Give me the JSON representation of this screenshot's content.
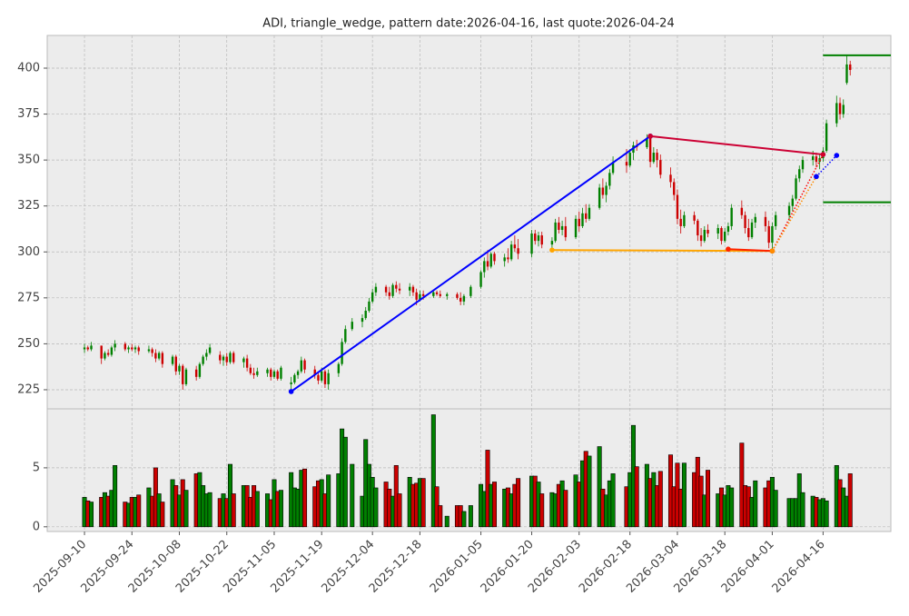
{
  "chart_data": {
    "type": "candlestick",
    "title": "ADI, triangle_wedge, pattern date:2026-04-16, last quote:2026-04-24",
    "up_color": "#008000",
    "down_color": "#cc0000",
    "grid": true,
    "xlim": [
      "2025-08-30",
      "2026-05-06"
    ],
    "xticks": [
      "2025-09-10",
      "2025-09-24",
      "2025-10-08",
      "2025-10-22",
      "2025-11-05",
      "2025-11-19",
      "2025-12-04",
      "2025-12-18",
      "2026-01-05",
      "2026-01-20",
      "2026-02-03",
      "2026-02-18",
      "2026-03-04",
      "2026-03-18",
      "2026-04-01",
      "2026-04-16"
    ],
    "ylim": [
      214.6,
      417.8
    ],
    "yticks": [
      225,
      250,
      275,
      300,
      325,
      350,
      375,
      400
    ],
    "y2lim": [
      -0.4,
      10
    ],
    "y2ticks": [
      0,
      5
    ],
    "x": [
      "2025-09-10",
      "2025-09-11",
      "2025-09-12",
      "2025-09-15",
      "2025-09-16",
      "2025-09-17",
      "2025-09-18",
      "2025-09-19",
      "2025-09-22",
      "2025-09-23",
      "2025-09-24",
      "2025-09-25",
      "2025-09-26",
      "2025-09-29",
      "2025-09-30",
      "2025-10-01",
      "2025-10-02",
      "2025-10-03",
      "2025-10-06",
      "2025-10-07",
      "2025-10-08",
      "2025-10-09",
      "2025-10-10",
      "2025-10-13",
      "2025-10-14",
      "2025-10-15",
      "2025-10-16",
      "2025-10-17",
      "2025-10-20",
      "2025-10-21",
      "2025-10-22",
      "2025-10-23",
      "2025-10-24",
      "2025-10-27",
      "2025-10-28",
      "2025-10-29",
      "2025-10-30",
      "2025-10-31",
      "2025-11-03",
      "2025-11-04",
      "2025-11-05",
      "2025-11-06",
      "2025-11-07",
      "2025-11-10",
      "2025-11-11",
      "2025-11-12",
      "2025-11-13",
      "2025-11-14",
      "2025-11-17",
      "2025-11-18",
      "2025-11-19",
      "2025-11-20",
      "2025-11-21",
      "2025-11-24",
      "2025-11-25",
      "2025-11-26",
      "2025-11-28",
      "2025-12-01",
      "2025-12-02",
      "2025-12-03",
      "2025-12-04",
      "2025-12-05",
      "2025-12-08",
      "2025-12-09",
      "2025-12-10",
      "2025-12-11",
      "2025-12-12",
      "2025-12-15",
      "2025-12-16",
      "2025-12-17",
      "2025-12-18",
      "2025-12-19",
      "2025-12-22",
      "2025-12-23",
      "2025-12-24",
      "2025-12-26",
      "2025-12-29",
      "2025-12-30",
      "2025-12-31",
      "2026-01-02",
      "2026-01-05",
      "2026-01-06",
      "2026-01-07",
      "2026-01-08",
      "2026-01-09",
      "2026-01-12",
      "2026-01-13",
      "2026-01-14",
      "2026-01-15",
      "2026-01-16",
      "2026-01-20",
      "2026-01-21",
      "2026-01-22",
      "2026-01-23",
      "2026-01-26",
      "2026-01-27",
      "2026-01-28",
      "2026-01-29",
      "2026-01-30",
      "2026-02-02",
      "2026-02-03",
      "2026-02-04",
      "2026-02-05",
      "2026-02-06",
      "2026-02-09",
      "2026-02-10",
      "2026-02-11",
      "2026-02-12",
      "2026-02-13",
      "2026-02-17",
      "2026-02-18",
      "2026-02-19",
      "2026-02-20",
      "2026-02-23",
      "2026-02-24",
      "2026-02-25",
      "2026-02-26",
      "2026-02-27",
      "2026-03-02",
      "2026-03-03",
      "2026-03-04",
      "2026-03-05",
      "2026-03-06",
      "2026-03-09",
      "2026-03-10",
      "2026-03-11",
      "2026-03-12",
      "2026-03-13",
      "2026-03-16",
      "2026-03-17",
      "2026-03-18",
      "2026-03-19",
      "2026-03-20",
      "2026-03-23",
      "2026-03-24",
      "2026-03-25",
      "2026-03-26",
      "2026-03-27",
      "2026-03-30",
      "2026-03-31",
      "2026-04-01",
      "2026-04-02",
      "2026-04-06",
      "2026-04-07",
      "2026-04-08",
      "2026-04-09",
      "2026-04-10",
      "2026-04-13",
      "2026-04-14",
      "2026-04-15",
      "2026-04-16",
      "2026-04-17",
      "2026-04-20",
      "2026-04-21",
      "2026-04-22",
      "2026-04-23",
      "2026-04-24"
    ],
    "ohlc": [
      [
        247,
        250,
        245,
        248
      ],
      [
        248,
        249,
        246,
        247
      ],
      [
        247,
        251,
        246,
        249
      ],
      [
        249,
        249,
        239,
        242
      ],
      [
        242,
        246,
        241,
        245
      ],
      [
        245,
        247,
        243,
        244
      ],
      [
        244,
        249,
        243,
        248
      ],
      [
        248,
        252,
        246,
        250
      ],
      [
        250,
        251,
        246,
        247
      ],
      [
        247,
        249,
        245,
        248
      ],
      [
        248,
        250,
        246,
        247
      ],
      [
        247,
        249,
        245,
        248
      ],
      [
        248,
        249,
        244,
        246
      ],
      [
        246,
        249,
        245,
        247
      ],
      [
        247,
        248,
        243,
        245
      ],
      [
        245,
        247,
        240,
        242
      ],
      [
        242,
        246,
        241,
        245
      ],
      [
        245,
        246,
        237,
        239
      ],
      [
        239,
        244,
        238,
        243
      ],
      [
        243,
        244,
        233,
        235
      ],
      [
        235,
        239,
        233,
        238
      ],
      [
        238,
        239,
        225,
        228
      ],
      [
        228,
        237,
        227,
        236
      ],
      [
        236,
        238,
        230,
        232
      ],
      [
        232,
        240,
        231,
        239
      ],
      [
        239,
        244,
        238,
        243
      ],
      [
        243,
        247,
        241,
        245
      ],
      [
        245,
        250,
        244,
        248
      ],
      [
        244,
        246,
        239,
        241
      ],
      [
        241,
        244,
        238,
        243
      ],
      [
        243,
        245,
        238,
        240
      ],
      [
        240,
        246,
        239,
        245
      ],
      [
        245,
        246,
        239,
        240
      ],
      [
        240,
        243,
        237,
        242
      ],
      [
        242,
        244,
        235,
        237
      ],
      [
        237,
        239,
        233,
        234
      ],
      [
        234,
        237,
        231,
        233
      ],
      [
        233,
        237,
        232,
        235
      ],
      [
        234,
        237,
        232,
        236
      ],
      [
        236,
        237,
        230,
        232
      ],
      [
        232,
        236,
        231,
        235
      ],
      [
        235,
        236,
        230,
        231
      ],
      [
        231,
        238,
        230,
        237
      ],
      [
        228,
        232,
        224,
        229
      ],
      [
        229,
        234,
        228,
        233
      ],
      [
        233,
        236,
        231,
        235
      ],
      [
        235,
        243,
        234,
        241
      ],
      [
        241,
        242,
        234,
        236
      ],
      [
        236,
        238,
        231,
        233
      ],
      [
        233,
        234,
        228,
        230
      ],
      [
        230,
        237,
        229,
        235
      ],
      [
        235,
        236,
        226,
        228
      ],
      [
        228,
        236,
        225,
        234
      ],
      [
        234,
        240,
        232,
        239
      ],
      [
        239,
        253,
        238,
        251
      ],
      [
        251,
        260,
        250,
        258
      ],
      [
        258,
        264,
        257,
        262
      ],
      [
        262,
        266,
        259,
        264
      ],
      [
        264,
        270,
        263,
        268
      ],
      [
        268,
        275,
        267,
        273
      ],
      [
        273,
        280,
        272,
        278
      ],
      [
        278,
        283,
        276,
        281
      ],
      [
        281,
        282,
        276,
        278
      ],
      [
        278,
        281,
        274,
        276
      ],
      [
        276,
        283,
        275,
        282
      ],
      [
        282,
        284,
        278,
        280
      ],
      [
        280,
        283,
        277,
        279
      ],
      [
        279,
        283,
        276,
        281
      ],
      [
        281,
        282,
        276,
        278
      ],
      [
        278,
        280,
        271,
        274
      ],
      [
        274,
        279,
        273,
        277
      ],
      [
        277,
        279,
        274,
        276
      ],
      [
        276,
        279,
        275,
        278
      ],
      [
        278,
        279,
        276,
        277
      ],
      [
        277,
        279,
        275,
        276
      ],
      [
        276,
        278,
        274,
        277
      ],
      [
        277,
        278,
        274,
        275
      ],
      [
        275,
        278,
        271,
        273
      ],
      [
        273,
        277,
        271,
        276
      ],
      [
        276,
        282,
        275,
        281
      ],
      [
        281,
        290,
        280,
        289
      ],
      [
        289,
        297,
        286,
        295
      ],
      [
        295,
        301,
        290,
        292
      ],
      [
        292,
        300,
        291,
        299
      ],
      [
        299,
        300,
        293,
        295
      ],
      [
        295,
        299,
        292,
        297
      ],
      [
        297,
        302,
        294,
        296
      ],
      [
        296,
        306,
        295,
        304
      ],
      [
        304,
        309,
        300,
        302
      ],
      [
        302,
        307,
        296,
        299
      ],
      [
        299,
        312,
        297,
        310
      ],
      [
        310,
        312,
        304,
        306
      ],
      [
        306,
        311,
        303,
        309
      ],
      [
        309,
        311,
        302,
        304
      ],
      [
        304,
        308,
        300,
        306
      ],
      [
        306,
        318,
        305,
        316
      ],
      [
        316,
        319,
        310,
        312
      ],
      [
        312,
        317,
        309,
        314
      ],
      [
        314,
        319,
        306,
        308
      ],
      [
        308,
        320,
        307,
        318
      ],
      [
        318,
        322,
        311,
        314
      ],
      [
        314,
        324,
        313,
        321
      ],
      [
        321,
        326,
        316,
        318
      ],
      [
        318,
        326,
        317,
        324
      ],
      [
        324,
        337,
        323,
        335
      ],
      [
        335,
        340,
        329,
        331
      ],
      [
        331,
        338,
        327,
        336
      ],
      [
        336,
        345,
        334,
        343
      ],
      [
        343,
        352,
        342,
        349
      ],
      [
        349,
        356,
        343,
        347
      ],
      [
        347,
        356,
        346,
        354
      ],
      [
        354,
        360,
        350,
        358
      ],
      [
        358,
        361,
        355,
        357
      ],
      [
        357,
        364,
        356,
        362
      ],
      [
        362,
        364,
        346,
        349
      ],
      [
        349,
        357,
        348,
        354
      ],
      [
        354,
        356,
        346,
        350
      ],
      [
        350,
        353,
        340,
        342
      ],
      [
        342,
        346,
        335,
        338
      ],
      [
        338,
        340,
        328,
        331
      ],
      [
        331,
        334,
        315,
        318
      ],
      [
        318,
        323,
        310,
        314
      ],
      [
        314,
        322,
        313,
        320
      ],
      [
        320,
        322,
        315,
        317
      ],
      [
        317,
        318,
        306,
        309
      ],
      [
        309,
        313,
        303,
        306
      ],
      [
        306,
        314,
        305,
        312
      ],
      [
        312,
        315,
        308,
        310
      ],
      [
        310,
        315,
        307,
        313
      ],
      [
        313,
        314,
        304,
        306
      ],
      [
        306,
        313,
        305,
        311
      ],
      [
        311,
        316,
        309,
        314
      ],
      [
        314,
        326,
        312,
        324
      ],
      [
        324,
        328,
        318,
        320
      ],
      [
        320,
        322,
        310,
        313
      ],
      [
        313,
        318,
        306,
        308
      ],
      [
        308,
        318,
        307,
        316
      ],
      [
        316,
        321,
        313,
        319
      ],
      [
        319,
        322,
        311,
        314
      ],
      [
        314,
        317,
        302,
        305
      ],
      [
        305,
        316,
        301,
        314
      ],
      [
        314,
        322,
        312,
        320
      ],
      [
        320,
        327,
        317,
        325
      ],
      [
        325,
        331,
        322,
        329
      ],
      [
        329,
        342,
        328,
        340
      ],
      [
        340,
        347,
        338,
        345
      ],
      [
        345,
        352,
        343,
        350
      ],
      [
        350,
        355,
        347,
        352
      ],
      [
        352,
        354,
        346,
        349
      ],
      [
        349,
        353,
        345,
        351
      ],
      [
        351,
        357,
        349,
        355
      ],
      [
        355,
        372,
        354,
        370
      ],
      [
        370,
        385,
        368,
        381
      ],
      [
        381,
        384,
        372,
        375
      ],
      [
        375,
        383,
        373,
        380
      ],
      [
        392,
        407,
        391,
        402
      ],
      [
        402,
        404,
        396,
        399
      ]
    ],
    "volume": [
      2.5,
      2.2,
      2.1,
      2.5,
      2.9,
      2.6,
      3.1,
      5.2,
      2.1,
      2.0,
      2.5,
      2.5,
      2.7,
      3.3,
      2.6,
      5.0,
      2.8,
      2.1,
      4.0,
      3.5,
      2.7,
      4.0,
      3.1,
      4.5,
      4.6,
      3.5,
      2.8,
      2.9,
      2.4,
      2.8,
      2.4,
      5.3,
      2.8,
      3.5,
      3.5,
      2.5,
      3.5,
      3.0,
      2.8,
      2.3,
      4.0,
      3.0,
      3.1,
      4.6,
      3.3,
      3.2,
      4.8,
      4.9,
      3.4,
      3.9,
      4.0,
      2.8,
      4.4,
      4.5,
      8.3,
      7.6,
      5.3,
      2.6,
      7.4,
      5.3,
      4.2,
      3.3,
      3.8,
      3.2,
      2.6,
      5.2,
      2.8,
      4.2,
      3.6,
      3.7,
      4.1,
      4.1,
      9.5,
      3.4,
      1.8,
      0.9,
      1.8,
      1.8,
      1.3,
      1.8,
      3.6,
      3.0,
      6.5,
      3.6,
      3.8,
      3.2,
      3.3,
      2.8,
      3.6,
      4.1,
      4.3,
      4.3,
      3.8,
      2.8,
      2.9,
      2.8,
      3.6,
      3.9,
      3.1,
      4.4,
      3.8,
      5.6,
      6.4,
      6.0,
      6.8,
      3.2,
      2.7,
      3.9,
      4.5,
      3.4,
      4.6,
      8.6,
      5.1,
      5.3,
      4.1,
      4.6,
      3.5,
      4.7,
      6.1,
      3.4,
      5.4,
      3.2,
      5.4,
      4.6,
      5.9,
      4.3,
      2.7,
      4.8,
      2.8,
      3.3,
      2.7,
      3.5,
      3.3,
      7.1,
      3.5,
      3.4,
      2.5,
      3.9,
      3.3,
      3.9,
      4.2,
      3.1,
      2.4,
      2.4,
      2.4,
      4.5,
      2.9,
      2.6,
      2.5,
      2.3,
      2.4,
      2.2,
      5.2,
      4.0,
      3.3,
      2.6,
      4.5
    ],
    "lines": [
      {
        "color": "#0000ff",
        "style": "solid",
        "markers": true,
        "points": [
          [
            "2025-11-10",
            224
          ],
          [
            "2026-02-24",
            363
          ]
        ]
      },
      {
        "color": "#cc0033",
        "style": "solid",
        "markers": true,
        "points": [
          [
            "2026-02-24",
            363
          ],
          [
            "2026-04-16",
            353
          ]
        ]
      },
      {
        "color": "#ffa500",
        "style": "solid",
        "markers": true,
        "points": [
          [
            "2026-01-26",
            301
          ],
          [
            "2026-04-01",
            300.5
          ]
        ]
      },
      {
        "color": "#ff2200",
        "style": "solid",
        "markers": true,
        "points": [
          [
            "2026-03-19",
            301.5
          ],
          [
            "2026-04-01",
            300.5
          ]
        ]
      },
      {
        "color": "#ff0000",
        "style": "dotted",
        "markers": false,
        "points": [
          [
            "2026-04-01",
            300.5
          ],
          [
            "2026-04-16",
            353
          ]
        ]
      },
      {
        "color": "#ff8c00",
        "style": "dotted",
        "markers": true,
        "points": [
          [
            "2026-04-01",
            300.5
          ],
          [
            "2026-04-14",
            341
          ]
        ]
      },
      {
        "color": "#0000ff",
        "style": "dotted",
        "markers": true,
        "points": [
          [
            "2026-04-14",
            341
          ],
          [
            "2026-04-20",
            352.5
          ]
        ]
      },
      {
        "color": "#008000",
        "style": "solid",
        "markers": false,
        "points": [
          [
            "2026-04-16",
            407
          ],
          [
            "2026-05-06",
            407
          ]
        ]
      },
      {
        "color": "#008000",
        "style": "solid",
        "markers": false,
        "points": [
          [
            "2026-04-16",
            327
          ],
          [
            "2026-05-06",
            327
          ]
        ]
      }
    ]
  }
}
